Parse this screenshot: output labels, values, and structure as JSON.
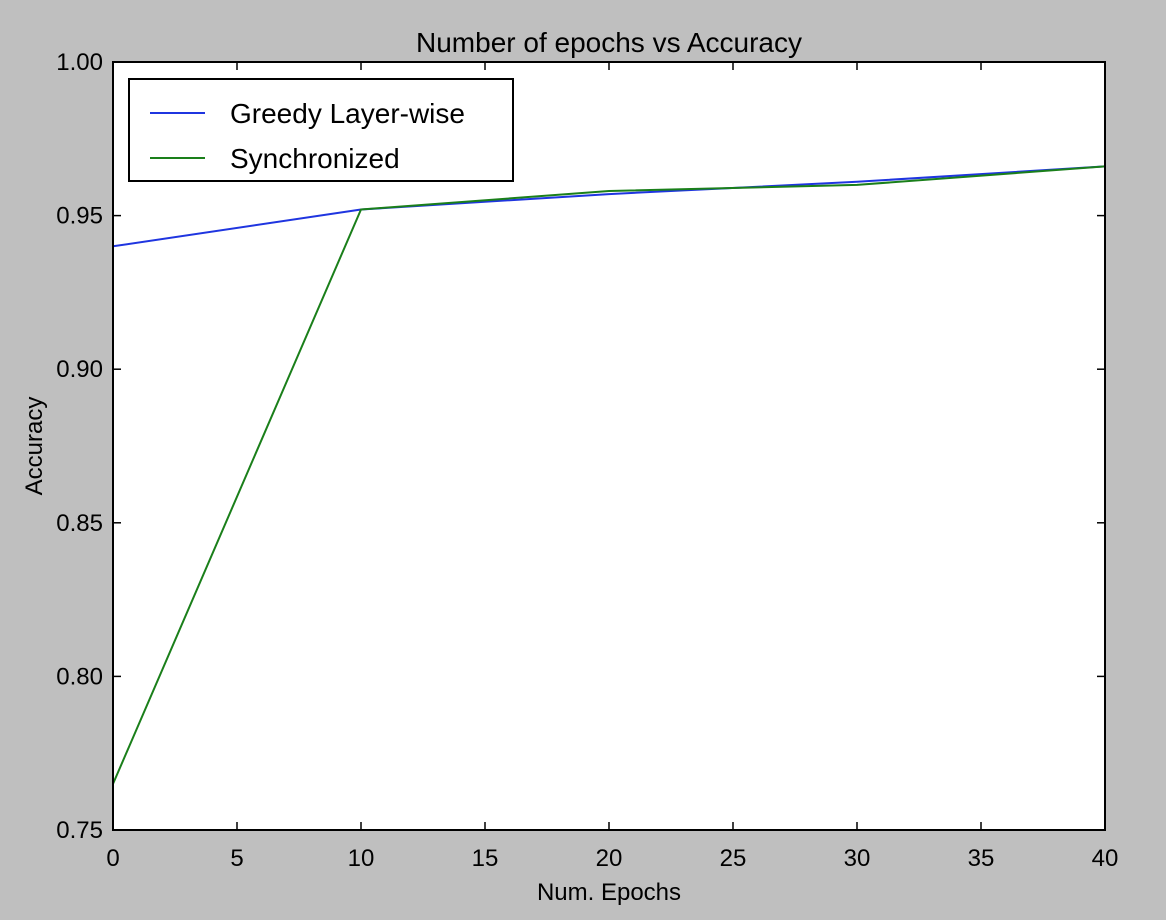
{
  "chart_data": {
    "type": "line",
    "title": "Number of epochs vs Accuracy",
    "xlabel": "Num. Epochs",
    "ylabel": "Accuracy",
    "xlim": [
      0,
      40
    ],
    "ylim": [
      0.75,
      1.0
    ],
    "x_ticks": [
      0,
      5,
      10,
      15,
      20,
      25,
      30,
      35,
      40
    ],
    "x_tick_labels": [
      "0",
      "5",
      "10",
      "15",
      "20",
      "25",
      "30",
      "35",
      "40"
    ],
    "y_ticks": [
      0.75,
      0.8,
      0.85,
      0.9,
      0.95,
      1.0
    ],
    "y_tick_labels": [
      "0.75",
      "0.80",
      "0.85",
      "0.90",
      "0.95",
      "1.00"
    ],
    "grid": false,
    "legend_position": "top-left",
    "series": [
      {
        "name": "Greedy Layer-wise",
        "color": "#1f35e0",
        "x": [
          0,
          10,
          20,
          30,
          40
        ],
        "y": [
          0.94,
          0.952,
          0.957,
          0.961,
          0.966
        ]
      },
      {
        "name": "Synchronized",
        "color": "#1a7f1a",
        "x": [
          0,
          10,
          20,
          30,
          40
        ],
        "y": [
          0.765,
          0.952,
          0.958,
          0.96,
          0.966
        ]
      }
    ]
  },
  "colors": {
    "figure_background": "#bfbfbf",
    "plot_background": "#ffffff"
  }
}
